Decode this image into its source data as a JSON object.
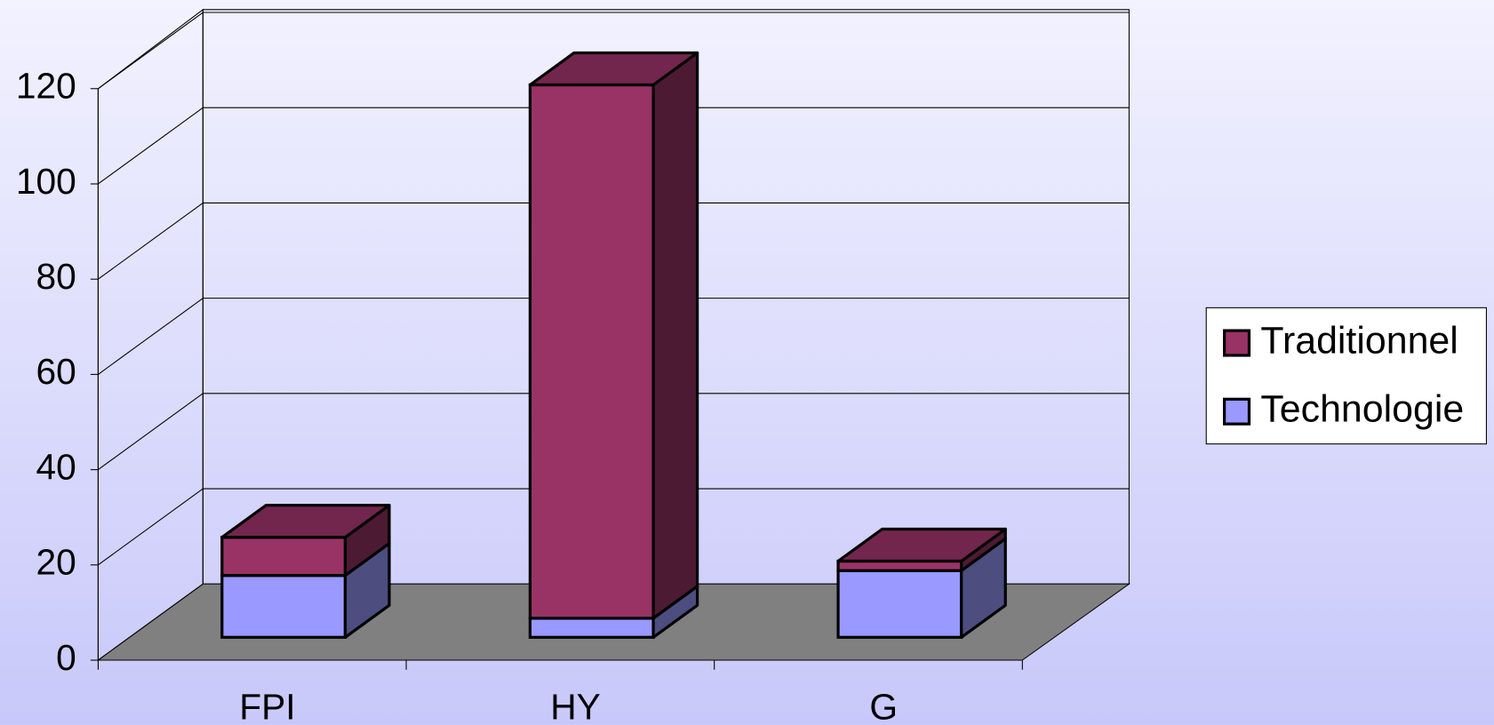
{
  "chart_data": {
    "type": "bar3d_stacked",
    "categories": [
      "FPI",
      "HY",
      "G"
    ],
    "series": [
      {
        "name": "Traditionnel",
        "color": "#993366",
        "values": [
          8,
          112,
          2
        ]
      },
      {
        "name": "Technologie",
        "color": "#9999ff",
        "values": [
          13,
          4,
          14
        ]
      }
    ],
    "ylim": [
      0,
      120
    ],
    "yticks": [
      0,
      20,
      40,
      60,
      80,
      100,
      120
    ],
    "grid": true,
    "legend": "right"
  }
}
